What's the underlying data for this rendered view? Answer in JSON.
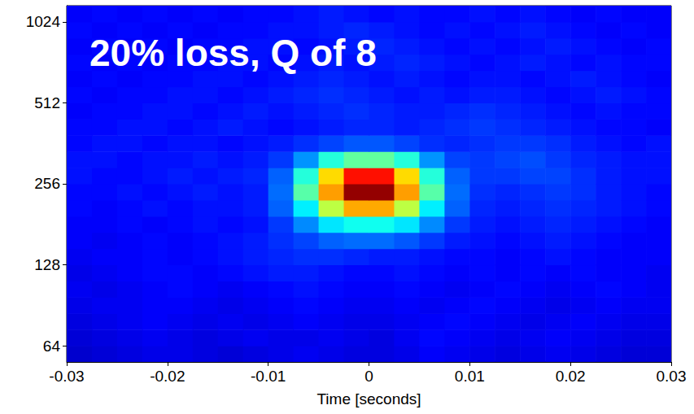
{
  "chart_data": {
    "type": "heatmap",
    "annotation": "20% loss, Q of 8",
    "x_label": "Time [seconds]",
    "log": "y",
    "xlim": [
      -0.03,
      0.03
    ],
    "xticks": [
      -0.03,
      -0.02,
      -0.01,
      0,
      0.01,
      0.02,
      0.03
    ],
    "ylim": [
      55.7,
      1176.3
    ],
    "yticks": [
      64,
      128,
      256,
      512,
      1024
    ],
    "zlim": [
      0,
      10
    ],
    "x_edges": [
      -0.03,
      -0.0275,
      -0.025,
      -0.0225,
      -0.02,
      -0.0175,
      -0.015,
      -0.0125,
      -0.01,
      -0.0075,
      -0.005,
      -0.0025,
      0,
      0.0025,
      0.005,
      0.0075,
      0.01,
      0.0125,
      0.015,
      0.0175,
      0.02,
      0.0225,
      0.025,
      0.0275,
      0.03
    ],
    "y_edges": [
      55.7,
      64,
      73.5,
      84.4,
      97.0,
      111.4,
      128,
      147.0,
      168.9,
      194.0,
      222.9,
      256,
      294.1,
      337.8,
      388.0,
      445.7,
      512,
      588.1,
      675.6,
      776.1,
      891.4,
      1024,
      1176.3
    ],
    "cells": [
      [
        0.7,
        0.8,
        0.9,
        1.0,
        1.0,
        0.9,
        0.8,
        0.9,
        1.0,
        1.1,
        1.0,
        0.9,
        0.9,
        1.0,
        1.2,
        1.1,
        1.0,
        0.9,
        1.0,
        1.1,
        1.0,
        0.9,
        0.8,
        0.8
      ],
      [
        0.8,
        0.9,
        1.0,
        1.1,
        1.0,
        0.9,
        1.0,
        1.1,
        1.0,
        1.0,
        1.1,
        1.0,
        0.9,
        1.1,
        1.3,
        1.2,
        1.1,
        1.0,
        1.1,
        1.2,
        1.1,
        1.0,
        0.9,
        0.9
      ],
      [
        0.9,
        1.0,
        1.1,
        1.2,
        1.1,
        1.0,
        1.1,
        1.0,
        1.1,
        1.2,
        1.1,
        1.0,
        1.0,
        1.1,
        1.2,
        1.3,
        1.2,
        1.1,
        1.0,
        1.1,
        1.2,
        1.1,
        1.0,
        1.0
      ],
      [
        1.0,
        1.1,
        1.1,
        1.2,
        1.2,
        1.1,
        1.0,
        1.1,
        1.2,
        1.3,
        1.2,
        1.1,
        1.1,
        1.2,
        1.1,
        1.2,
        1.3,
        1.2,
        1.1,
        1.0,
        1.1,
        1.2,
        1.1,
        1.1
      ],
      [
        1.1,
        1.0,
        1.1,
        1.2,
        1.3,
        1.2,
        1.1,
        1.2,
        1.3,
        1.4,
        1.3,
        1.2,
        1.2,
        1.3,
        1.2,
        1.1,
        1.2,
        1.3,
        1.2,
        1.1,
        1.2,
        1.3,
        1.2,
        1.1
      ],
      [
        1.0,
        1.1,
        1.2,
        1.3,
        1.3,
        1.2,
        1.3,
        1.4,
        1.5,
        1.5,
        1.4,
        1.3,
        1.3,
        1.4,
        1.3,
        1.2,
        1.3,
        1.2,
        1.3,
        1.2,
        1.3,
        1.2,
        1.2,
        1.1
      ],
      [
        1.1,
        1.2,
        1.2,
        1.3,
        1.2,
        1.3,
        1.4,
        1.5,
        1.6,
        1.7,
        1.7,
        1.6,
        1.5,
        1.5,
        1.4,
        1.3,
        1.3,
        1.2,
        1.3,
        1.4,
        1.3,
        1.2,
        1.2,
        1.2
      ],
      [
        1.2,
        1.1,
        1.2,
        1.3,
        1.2,
        1.3,
        1.4,
        1.5,
        1.7,
        1.9,
        2.2,
        2.3,
        2.3,
        2.1,
        1.8,
        1.5,
        1.4,
        1.3,
        1.4,
        1.5,
        1.4,
        1.3,
        1.2,
        1.2
      ],
      [
        1.2,
        1.2,
        1.3,
        1.2,
        1.3,
        1.4,
        1.3,
        1.4,
        1.8,
        2.6,
        3.5,
        3.9,
        3.9,
        3.5,
        2.6,
        1.8,
        1.5,
        1.4,
        1.5,
        1.6,
        1.5,
        1.4,
        1.3,
        1.2
      ],
      [
        1.3,
        1.2,
        1.3,
        1.4,
        1.3,
        1.4,
        1.4,
        1.5,
        2.2,
        3.6,
        5.6,
        7.1,
        7.1,
        5.6,
        3.6,
        2.2,
        1.6,
        1.5,
        1.6,
        1.7,
        1.6,
        1.5,
        1.4,
        1.3
      ],
      [
        1.3,
        1.3,
        1.4,
        1.3,
        1.4,
        1.5,
        1.4,
        1.5,
        2.3,
        4.6,
        7.2,
        9.8,
        9.8,
        7.2,
        4.6,
        2.3,
        1.7,
        1.6,
        1.7,
        1.8,
        1.7,
        1.5,
        1.4,
        1.3
      ],
      [
        1.4,
        1.3,
        1.3,
        1.4,
        1.5,
        1.4,
        1.5,
        1.6,
        2.2,
        4.1,
        6.6,
        8.6,
        8.6,
        6.6,
        4.1,
        2.2,
        1.8,
        1.8,
        1.9,
        1.9,
        1.7,
        1.5,
        1.4,
        1.4
      ],
      [
        1.4,
        1.4,
        1.3,
        1.4,
        1.4,
        1.5,
        1.4,
        1.5,
        1.8,
        2.7,
        4.1,
        4.7,
        4.7,
        4.1,
        2.7,
        1.9,
        1.8,
        1.9,
        2.0,
        1.8,
        1.6,
        1.5,
        1.4,
        1.4
      ],
      [
        1.3,
        1.4,
        1.4,
        1.3,
        1.4,
        1.4,
        1.3,
        1.4,
        1.5,
        1.7,
        1.9,
        2.1,
        2.1,
        1.9,
        1.7,
        1.6,
        1.7,
        1.8,
        1.8,
        1.7,
        1.5,
        1.4,
        1.3,
        1.4
      ],
      [
        1.3,
        1.3,
        1.4,
        1.4,
        1.3,
        1.4,
        1.5,
        1.4,
        1.3,
        1.4,
        1.5,
        1.6,
        1.6,
        1.5,
        1.6,
        1.7,
        1.8,
        1.7,
        1.6,
        1.5,
        1.4,
        1.3,
        1.3,
        1.2
      ],
      [
        1.2,
        1.3,
        1.3,
        1.4,
        1.4,
        1.3,
        1.4,
        1.5,
        1.4,
        1.5,
        1.6,
        1.7,
        1.6,
        1.5,
        1.5,
        1.6,
        1.7,
        1.6,
        1.5,
        1.4,
        1.3,
        1.4,
        1.3,
        1.3
      ],
      [
        1.3,
        1.2,
        1.3,
        1.3,
        1.4,
        1.4,
        1.3,
        1.4,
        1.5,
        1.6,
        1.7,
        1.6,
        1.5,
        1.4,
        1.5,
        1.4,
        1.5,
        1.5,
        1.4,
        1.3,
        1.4,
        1.5,
        1.4,
        1.3
      ],
      [
        1.2,
        1.3,
        1.2,
        1.3,
        1.3,
        1.4,
        1.4,
        1.3,
        1.4,
        1.5,
        1.6,
        1.5,
        1.4,
        1.5,
        1.4,
        1.3,
        1.4,
        1.4,
        1.3,
        1.4,
        1.5,
        1.4,
        1.3,
        1.2
      ],
      [
        1.3,
        1.2,
        1.3,
        1.2,
        1.3,
        1.3,
        1.4,
        1.4,
        1.3,
        1.4,
        1.5,
        1.4,
        1.5,
        1.6,
        1.5,
        1.4,
        1.3,
        1.4,
        1.5,
        1.4,
        1.3,
        1.4,
        1.3,
        1.3
      ],
      [
        1.2,
        1.3,
        1.2,
        1.3,
        1.2,
        1.3,
        1.3,
        1.4,
        1.4,
        1.3,
        1.4,
        1.5,
        1.6,
        1.5,
        1.4,
        1.3,
        1.4,
        1.3,
        1.4,
        1.5,
        1.4,
        1.3,
        1.2,
        1.3
      ],
      [
        1.3,
        1.2,
        1.3,
        1.2,
        1.3,
        1.2,
        1.3,
        1.3,
        1.4,
        1.4,
        1.5,
        1.6,
        1.5,
        1.4,
        1.3,
        1.4,
        1.3,
        1.4,
        1.5,
        1.4,
        1.3,
        1.2,
        1.3,
        1.2
      ],
      [
        1.2,
        1.3,
        1.2,
        1.3,
        1.2,
        1.3,
        1.2,
        1.3,
        1.3,
        1.4,
        1.5,
        1.4,
        1.3,
        1.4,
        1.3,
        1.3,
        1.4,
        1.3,
        1.4,
        1.3,
        1.2,
        1.3,
        1.2,
        1.2
      ]
    ]
  }
}
